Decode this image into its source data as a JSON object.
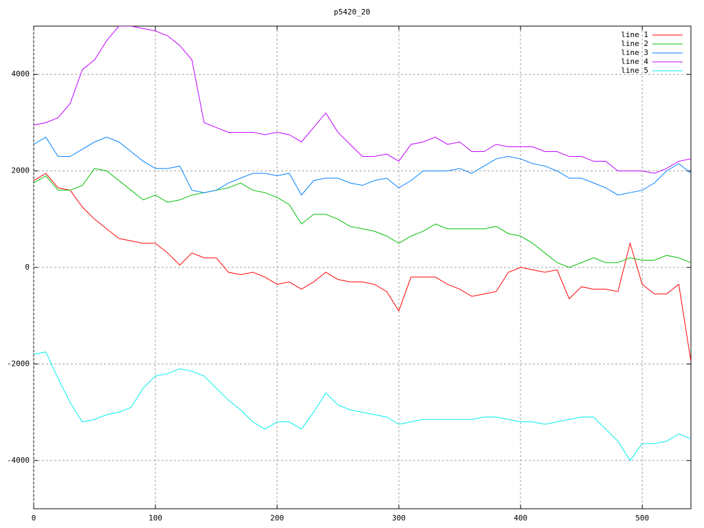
{
  "chart_data": {
    "type": "line",
    "title": "p5420_20",
    "x": [
      0,
      10,
      20,
      30,
      40,
      50,
      60,
      70,
      80,
      90,
      100,
      110,
      120,
      130,
      140,
      150,
      160,
      170,
      180,
      190,
      200,
      210,
      220,
      230,
      240,
      250,
      260,
      270,
      280,
      290,
      300,
      310,
      320,
      330,
      340,
      350,
      360,
      370,
      380,
      390,
      400,
      410,
      420,
      430,
      440,
      450,
      460,
      470,
      480,
      490,
      500,
      510,
      520,
      530,
      540
    ],
    "series": [
      {
        "name": "line 1",
        "color": "#ff0000",
        "values": [
          1800,
          1950,
          1650,
          1600,
          1250,
          1000,
          800,
          600,
          550,
          500,
          500,
          300,
          50,
          300,
          200,
          200,
          -100,
          -150,
          -100,
          -200,
          -350,
          -300,
          -450,
          -300,
          -100,
          -250,
          -300,
          -300,
          -350,
          -500,
          -900,
          -200,
          -200,
          -200,
          -350,
          -450,
          -600,
          -550,
          -500,
          -100,
          0,
          -50,
          -100,
          -50,
          -650,
          -400,
          -450,
          -450,
          -500,
          500,
          -350,
          -550,
          -550,
          -350,
          -1950
        ]
      },
      {
        "name": "line 2",
        "color": "#00c000",
        "values": [
          1750,
          1900,
          1600,
          1600,
          1700,
          2050,
          2000,
          1800,
          1600,
          1400,
          1500,
          1350,
          1400,
          1500,
          1550,
          1600,
          1650,
          1750,
          1600,
          1550,
          1450,
          1300,
          900,
          1100,
          1100,
          1000,
          850,
          800,
          750,
          650,
          500,
          650,
          750,
          900,
          800,
          800,
          800,
          800,
          850,
          700,
          650,
          500,
          300,
          100,
          0,
          100,
          200,
          100,
          100,
          200,
          150,
          150,
          250,
          200,
          100
        ]
      },
      {
        "name": "line 3",
        "color": "#0080ff",
        "values": [
          2550,
          2700,
          2300,
          2300,
          2450,
          2600,
          2700,
          2600,
          2400,
          2200,
          2050,
          2050,
          2100,
          1600,
          1550,
          1600,
          1750,
          1850,
          1950,
          1950,
          1900,
          1950,
          1500,
          1800,
          1850,
          1850,
          1750,
          1700,
          1800,
          1850,
          1650,
          1800,
          2000,
          2000,
          2000,
          2050,
          1950,
          2100,
          2250,
          2300,
          2250,
          2150,
          2100,
          2000,
          1850,
          1850,
          1750,
          1650,
          1500,
          1550,
          1600,
          1750,
          2000,
          2150,
          1950
        ]
      },
      {
        "name": "line 4",
        "color": "#c000ff",
        "values": [
          2950,
          3000,
          3100,
          3400,
          4100,
          4300,
          4700,
          5000,
          5000,
          4950,
          4900,
          4800,
          4600,
          4300,
          3000,
          2900,
          2800,
          2800,
          2800,
          2750,
          2800,
          2750,
          2600,
          2900,
          3200,
          2800,
          2550,
          2300,
          2300,
          2350,
          2200,
          2550,
          2600,
          2700,
          2550,
          2600,
          2400,
          2400,
          2550,
          2500,
          2500,
          2500,
          2400,
          2400,
          2300,
          2300,
          2200,
          2200,
          2000,
          2000,
          2000,
          1950,
          2050,
          2200,
          2250
        ]
      },
      {
        "name": "line 5",
        "color": "#00eeee",
        "values": [
          -1800,
          -1750,
          -2300,
          -2800,
          -3200,
          -3150,
          -3050,
          -3000,
          -2900,
          -2500,
          -2250,
          -2200,
          -2100,
          -2150,
          -2250,
          -2500,
          -2750,
          -2950,
          -3200,
          -3350,
          -3200,
          -3200,
          -3350,
          -3000,
          -2600,
          -2850,
          -2950,
          -3000,
          -3050,
          -3100,
          -3250,
          -3200,
          -3150,
          -3150,
          -3150,
          -3150,
          -3150,
          -3100,
          -3100,
          -3150,
          -3200,
          -3200,
          -3250,
          -3200,
          -3150,
          -3100,
          -3100,
          -3350,
          -3600,
          -4000,
          -3650,
          -3650,
          -3600,
          -3450,
          -3550
        ]
      }
    ],
    "xlim": [
      0,
      540
    ],
    "ylim": [
      -5000,
      5000
    ],
    "xticks": [
      0,
      100,
      200,
      300,
      400,
      500
    ],
    "yticks": [
      -4000,
      -2000,
      0,
      2000,
      4000
    ],
    "grid": true,
    "legend": "top-right"
  }
}
